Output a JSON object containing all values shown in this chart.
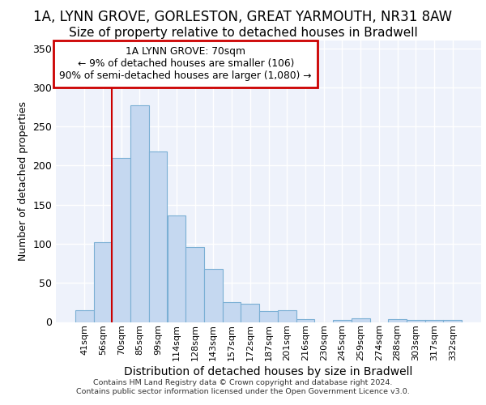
{
  "title_line1": "1A, LYNN GROVE, GORLESTON, GREAT YARMOUTH, NR31 8AW",
  "title_line2": "Size of property relative to detached houses in Bradwell",
  "xlabel": "Distribution of detached houses by size in Bradwell",
  "ylabel": "Number of detached properties",
  "categories": [
    "41sqm",
    "56sqm",
    "70sqm",
    "85sqm",
    "99sqm",
    "114sqm",
    "128sqm",
    "143sqm",
    "157sqm",
    "172sqm",
    "187sqm",
    "201sqm",
    "216sqm",
    "230sqm",
    "245sqm",
    "259sqm",
    "274sqm",
    "288sqm",
    "303sqm",
    "317sqm",
    "332sqm"
  ],
  "values": [
    15,
    102,
    210,
    277,
    218,
    136,
    96,
    68,
    25,
    23,
    14,
    15,
    4,
    0,
    3,
    5,
    0,
    4,
    3,
    3,
    3
  ],
  "bar_color": "#c5d8f0",
  "bar_edge_color": "#7aafd4",
  "red_line_index": 2,
  "annotation_text": "1A LYNN GROVE: 70sqm\n← 9% of detached houses are smaller (106)\n90% of semi-detached houses are larger (1,080) →",
  "annotation_box_color": "#ffffff",
  "annotation_box_edge": "#cc0000",
  "ylim": [
    0,
    360
  ],
  "yticks": [
    0,
    50,
    100,
    150,
    200,
    250,
    300,
    350
  ],
  "footer_line1": "Contains HM Land Registry data © Crown copyright and database right 2024.",
  "footer_line2": "Contains public sector information licensed under the Open Government Licence v3.0.",
  "background_color": "#eef2fb",
  "grid_color": "#ffffff",
  "title1_fontsize": 12,
  "title2_fontsize": 11
}
